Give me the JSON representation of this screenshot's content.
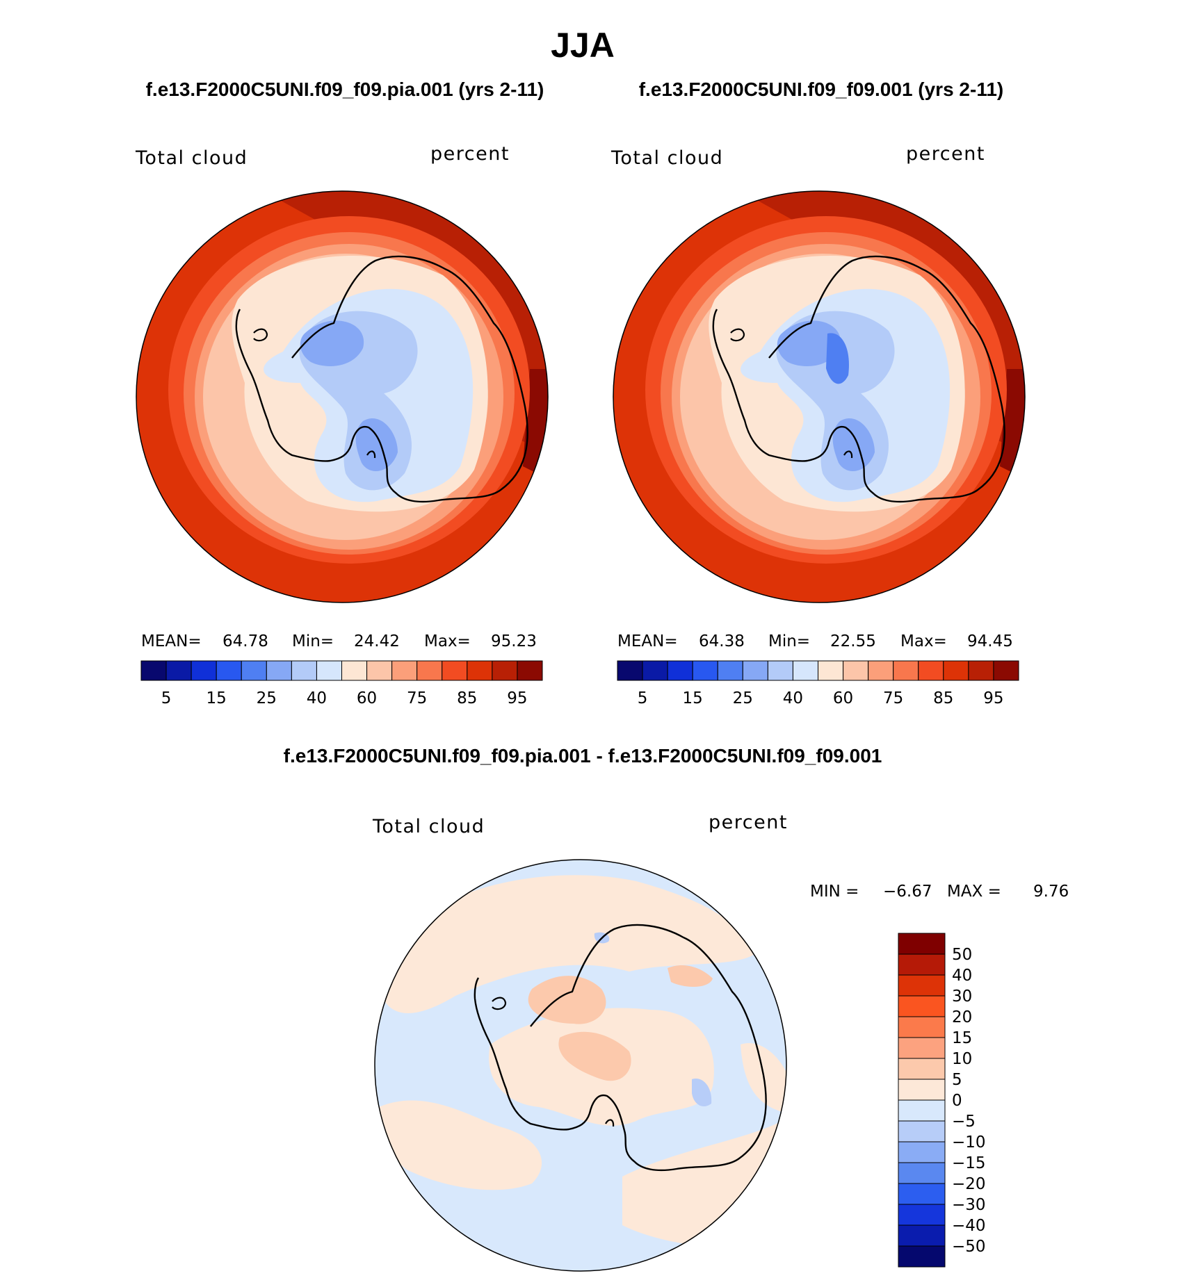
{
  "page_title": "JJA",
  "chart_data": [
    {
      "type": "heatmap",
      "projection": "south polar stereographic",
      "title": "f.e13.F2000C5UNI.f09_f09.pia.001 (yrs 2-11)",
      "variable": "Total cloud",
      "units": "percent",
      "stats": {
        "mean_label": "MEAN=",
        "mean": "64.78",
        "min_label": "Min=",
        "min": "24.42",
        "max_label": "Max=",
        "max": "95.23"
      },
      "colorbar": {
        "levels": [
          5,
          10,
          15,
          20,
          25,
          30,
          40,
          50,
          60,
          70,
          75,
          80,
          85,
          90,
          95
        ],
        "tick_labels": [
          "5",
          "15",
          "25",
          "40",
          "60",
          "75",
          "85",
          "95"
        ],
        "colors": [
          "#08086e",
          "#0a1aa6",
          "#1030d8",
          "#2858f0",
          "#4f7ff2",
          "#86a8f5",
          "#b3cbf8",
          "#d6e6fc",
          "#fde6d4",
          "#fcc5a9",
          "#fb9f7a",
          "#f8774d",
          "#f24c22",
          "#dd3307",
          "#b82005",
          "#8b0a02"
        ]
      },
      "regions": {
        "antarctica_interior": "~25-50",
        "coast": "50-70",
        "ocean_45_60S": "85-95"
      }
    },
    {
      "type": "heatmap",
      "projection": "south polar stereographic",
      "title": "f.e13.F2000C5UNI.f09_f09.001 (yrs 2-11)",
      "variable": "Total cloud",
      "units": "percent",
      "stats": {
        "mean_label": "MEAN=",
        "mean": "64.38",
        "min_label": "Min=",
        "min": "22.55",
        "max_label": "Max=",
        "max": "94.45"
      },
      "colorbar": {
        "levels": [
          5,
          10,
          15,
          20,
          25,
          30,
          40,
          50,
          60,
          70,
          75,
          80,
          85,
          90,
          95
        ],
        "tick_labels": [
          "5",
          "15",
          "25",
          "40",
          "60",
          "75",
          "85",
          "95"
        ],
        "colors": [
          "#08086e",
          "#0a1aa6",
          "#1030d8",
          "#2858f0",
          "#4f7ff2",
          "#86a8f5",
          "#b3cbf8",
          "#d6e6fc",
          "#fde6d4",
          "#fcc5a9",
          "#fb9f7a",
          "#f8774d",
          "#f24c22",
          "#dd3307",
          "#b82005",
          "#8b0a02"
        ]
      },
      "regions": {
        "antarctica_interior": "~22-50",
        "coast": "50-70",
        "ocean_45_60S": "85-95"
      }
    },
    {
      "type": "heatmap",
      "projection": "south polar stereographic",
      "title": "f.e13.F2000C5UNI.f09_f09.pia.001 - f.e13.F2000C5UNI.f09_f09.001",
      "variable": "Total cloud",
      "units": "percent",
      "stats": {
        "min_label": "MIN =",
        "min": "−6.67",
        "max_label": "MAX =",
        "max": "9.76"
      },
      "colorbar": {
        "orientation": "vertical",
        "levels": [
          50,
          40,
          30,
          20,
          15,
          10,
          5,
          0,
          -5,
          -10,
          -15,
          -20,
          -30,
          -40,
          -50
        ],
        "tick_labels": [
          "50",
          "40",
          "30",
          "20",
          "15",
          "10",
          "5",
          "0",
          "−5",
          "−10",
          "−15",
          "−20",
          "−30",
          "−40",
          "−50"
        ],
        "colors": [
          "#7f0000",
          "#b51a07",
          "#dd3307",
          "#fa5520",
          "#fb7a4b",
          "#fca27f",
          "#fcc9ac",
          "#fde8d8",
          "#d8e8fc",
          "#b7cdf8",
          "#8aacf5",
          "#5a88f0",
          "#2c5ef0",
          "#1536dc",
          "#0a1cae",
          "#05086e"
        ]
      },
      "regions": {
        "mostly": "-5 to 5",
        "west_antarctica": "5 to 10",
        "east_coast_patch": "-10 to -5"
      }
    }
  ]
}
